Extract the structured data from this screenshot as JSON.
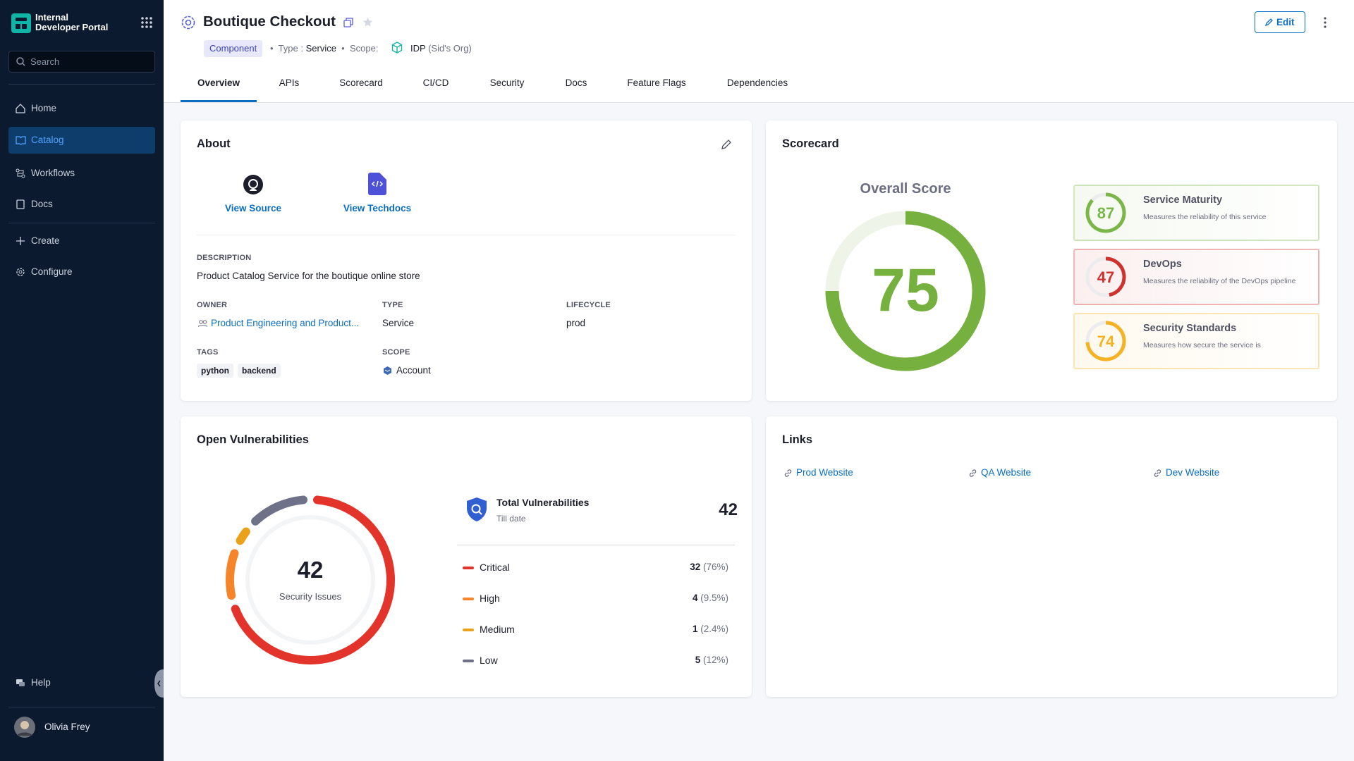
{
  "sidebar": {
    "brand_line1": "Internal",
    "brand_line2": "Developer Portal",
    "search_placeholder": "Search",
    "nav": [
      "Home",
      "Catalog",
      "Workflows",
      "Docs"
    ],
    "nav2": [
      "Create",
      "Configure"
    ],
    "help": "Help",
    "user": "Olivia Frey"
  },
  "header": {
    "title": "Boutique Checkout",
    "badge": "Component",
    "type_label": "Type :",
    "type_value": "Service",
    "scope_label": "Scope:",
    "scope_value": "IDP",
    "scope_org": "(Sid's Org)",
    "edit": "Edit"
  },
  "tabs": [
    "Overview",
    "APIs",
    "Scorecard",
    "CI/CD",
    "Security",
    "Docs",
    "Feature Flags",
    "Dependencies"
  ],
  "about": {
    "title": "About",
    "links": [
      "View Source",
      "View Techdocs"
    ],
    "description_label": "DESCRIPTION",
    "description": "Product Catalog Service for the boutique online store",
    "owner_label": "OWNER",
    "owner": "Product Engineering and Product...",
    "type_label": "TYPE",
    "type": "Service",
    "lifecycle_label": "LIFECYCLE",
    "lifecycle": "prod",
    "tags_label": "TAGS",
    "tags": [
      "python",
      "backend"
    ],
    "scope_label": "SCOPE",
    "scope": "Account"
  },
  "scorecard": {
    "title": "Scorecard",
    "overall_label": "Overall Score",
    "overall": 75,
    "overall_color": "#76b03e",
    "checks": [
      {
        "name": "Service Maturity",
        "description": "Measures the reliability of this service",
        "score": 87,
        "color": "#7ab648"
      },
      {
        "name": "DevOps",
        "description": "Measures the reliability of the DevOps pipeline",
        "score": 47,
        "color": "#d0312d"
      },
      {
        "name": "Security Standards",
        "description": "Measures how secure the service is",
        "score": 74,
        "color": "#f5b324"
      }
    ]
  },
  "vulnerabilities": {
    "title": "Open Vulnerabilities",
    "total": 42,
    "center_label": "Security Issues",
    "summary_title": "Total Vulnerabilities",
    "summary_subtitle": "Till date",
    "severities": [
      {
        "name": "Critical",
        "count": 32,
        "share": "(76%)",
        "color": "#e2342b"
      },
      {
        "name": "High",
        "count": 4,
        "share": "(9.5%)",
        "color": "#f5842a"
      },
      {
        "name": "Medium",
        "count": 1,
        "share": "(2.4%)",
        "color": "#eaa21a"
      },
      {
        "name": "Low",
        "count": 5,
        "share": "(12%)",
        "color": "#6f7188"
      }
    ]
  },
  "links": {
    "title": "Links",
    "items": [
      "Prod Website",
      "QA Website",
      "Dev Website"
    ]
  }
}
